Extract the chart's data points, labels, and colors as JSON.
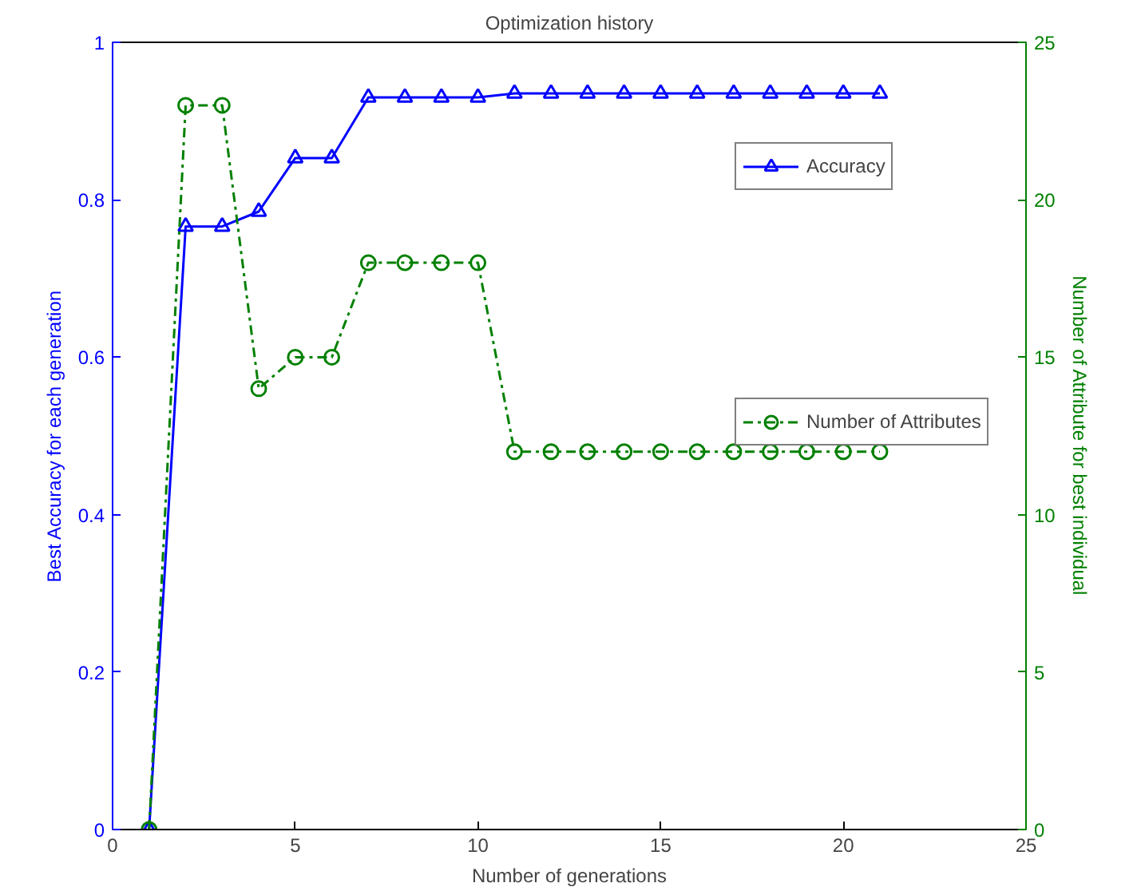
{
  "chart_data": {
    "type": "line",
    "title": "Optimization history",
    "xlabel": "Number of generations",
    "ylabel": "Best Accuracy for each generation",
    "y2label": "Number of Attribute for best individual",
    "x": [
      1,
      2,
      3,
      4,
      5,
      6,
      7,
      8,
      9,
      10,
      11,
      12,
      13,
      14,
      15,
      16,
      17,
      18,
      19,
      20,
      21
    ],
    "series": [
      {
        "name": "Accuracy",
        "color": "#0000ff",
        "marker": "triangle",
        "line_style": "solid",
        "values": [
          0,
          0.766,
          0.766,
          0.785,
          0.853,
          0.853,
          0.93,
          0.93,
          0.93,
          0.93,
          0.935,
          0.935,
          0.935,
          0.935,
          0.935,
          0.935,
          0.935,
          0.935,
          0.935,
          0.935,
          0.935
        ]
      },
      {
        "name": "Number of Attributes",
        "color": "#008000",
        "marker": "circle",
        "line_style": "dashed",
        "axis": "y2",
        "values": [
          0,
          23,
          23,
          14,
          15,
          15,
          18,
          18,
          18,
          18,
          12,
          12,
          12,
          12,
          12,
          12,
          12,
          12,
          12,
          12,
          12
        ]
      }
    ],
    "xlim": [
      0,
      25
    ],
    "xticks": [
      0,
      5,
      10,
      15,
      20,
      25
    ],
    "ylim": [
      0,
      1
    ],
    "yticks": [
      0,
      0.2,
      0.4,
      0.6,
      0.8,
      1
    ],
    "y2lim": [
      0,
      25
    ],
    "y2ticks": [
      0,
      5,
      10,
      15,
      20,
      25
    ],
    "legend": "right",
    "grid": false
  }
}
